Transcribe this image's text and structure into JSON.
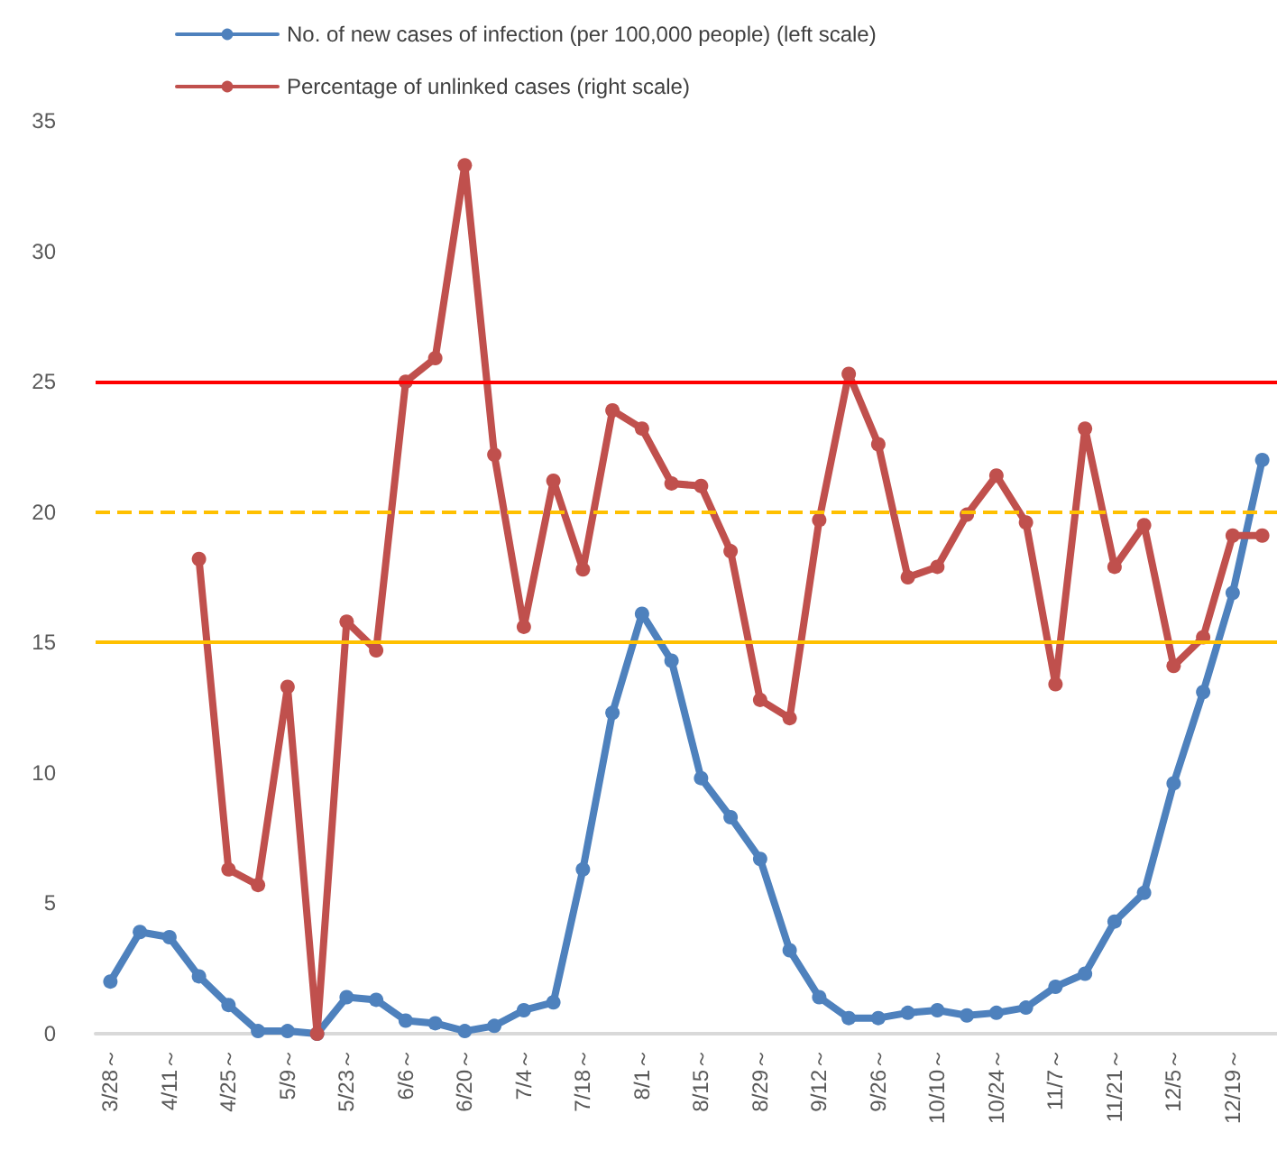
{
  "chart_data": {
    "type": "line",
    "categories": [
      "3/28～",
      null,
      "4/11～",
      null,
      "4/25～",
      null,
      "5/9～",
      null,
      "5/23～",
      null,
      "6/6～",
      null,
      "6/20～",
      null,
      "7/4～",
      null,
      "7/18～",
      null,
      "8/1～",
      null,
      "8/15～",
      null,
      "8/29～",
      null,
      "9/12～",
      null,
      "9/26～",
      null,
      "10/10～",
      null,
      "10/24～",
      null,
      "11/7～",
      null,
      "11/21～",
      null,
      "12/5～",
      null,
      "12/19～",
      null
    ],
    "series": [
      {
        "name": "No. of new cases of infection (per 100,000 people) (left scale)",
        "color": "#4e81bd",
        "values": [
          2.0,
          3.9,
          3.7,
          2.2,
          1.1,
          0.1,
          0.1,
          0.0,
          1.4,
          1.3,
          0.5,
          0.4,
          0.1,
          0.3,
          0.9,
          1.2,
          6.3,
          12.3,
          16.1,
          14.3,
          9.8,
          8.3,
          6.7,
          3.2,
          1.4,
          0.6,
          0.6,
          0.8,
          0.9,
          0.7,
          0.8,
          1.0,
          1.8,
          2.3,
          4.3,
          5.4,
          9.6,
          13.1,
          16.9,
          22.0
        ]
      },
      {
        "name": "Percentage of unlinked cases (right scale)",
        "color": "#c0504d",
        "values": [
          null,
          null,
          null,
          18.2,
          6.3,
          5.7,
          13.3,
          0,
          15.8,
          14.7,
          25.0,
          25.9,
          33.3,
          22.2,
          15.6,
          21.2,
          17.8,
          23.9,
          23.2,
          21.1,
          21.0,
          18.5,
          12.8,
          12.1,
          19.7,
          25.3,
          22.6,
          17.5,
          17.9,
          19.9,
          21.4,
          19.6,
          13.4,
          23.2,
          17.9,
          19.5,
          14.1,
          15.2,
          19.1,
          19.1
        ]
      }
    ],
    "ylim": [
      0,
      35
    ],
    "yticks": [
      0,
      5,
      10,
      15,
      20,
      25,
      30,
      35
    ],
    "ref_lines": [
      {
        "axis": "y",
        "value": 25,
        "color": "#ff0000",
        "line_style": "solid"
      },
      {
        "axis": "y",
        "value": 20,
        "color": "#ffc000",
        "line_style": "dashed"
      },
      {
        "axis": "y",
        "value": 15,
        "color": "#ffc000",
        "line_style": "solid"
      }
    ],
    "legend": "top left",
    "grid": false,
    "marker": "circle",
    "line_style": "solid"
  }
}
